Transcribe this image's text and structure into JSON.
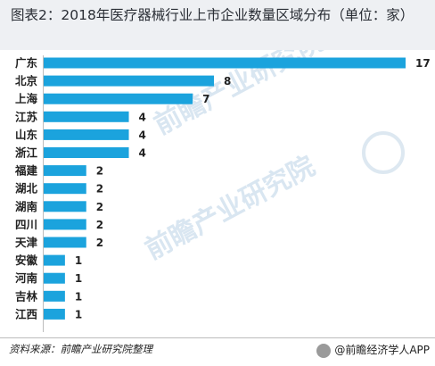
{
  "title": "图表2：2018年医疗器械行业上市企业数量区域分布（单位：家）",
  "source": "资料来源：前瞻产业研究院整理",
  "credit": "@前瞻经济学人APP",
  "watermark": "前瞻产业研究院",
  "colors": {
    "bar": "#1ba3dd",
    "title_bg": "#eef0f3"
  },
  "chart_data": {
    "type": "bar",
    "orientation": "horizontal",
    "title": "图表2：2018年医疗器械行业上市企业数量区域分布（单位：家）",
    "categories": [
      "广东",
      "北京",
      "上海",
      "江苏",
      "山东",
      "浙江",
      "福建",
      "湖北",
      "湖南",
      "四川",
      "天津",
      "安徽",
      "河南",
      "吉林",
      "江西"
    ],
    "values": [
      17,
      8,
      7,
      4,
      4,
      4,
      2,
      2,
      2,
      2,
      2,
      1,
      1,
      1,
      1
    ],
    "xlim": [
      0,
      17
    ],
    "grid": false,
    "legend": "none"
  }
}
